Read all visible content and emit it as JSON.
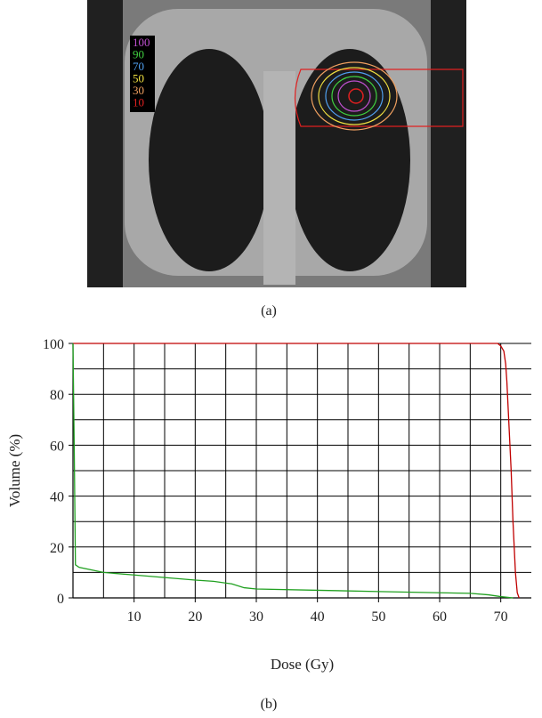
{
  "figure_a": {
    "caption": "(a)",
    "dose_legend": [
      {
        "label": "100",
        "color": "#c050d0"
      },
      {
        "label": "90",
        "color": "#40d040"
      },
      {
        "label": "70",
        "color": "#50a0f0"
      },
      {
        "label": "50",
        "color": "#f0e040"
      },
      {
        "label": "30",
        "color": "#f0a060"
      },
      {
        "label": "10",
        "color": "#e02020"
      }
    ]
  },
  "chart_data": {
    "type": "line",
    "xlabel": "Dose (Gy)",
    "ylabel": "Volume (%)",
    "xlim": [
      0,
      75
    ],
    "ylim": [
      0,
      100
    ],
    "xticks": [
      10,
      20,
      30,
      40,
      50,
      60,
      70
    ],
    "yticks": [
      0,
      20,
      40,
      60,
      80,
      100
    ],
    "x_gridlines": [
      5,
      10,
      15,
      20,
      25,
      30,
      35,
      40,
      45,
      50,
      55,
      60,
      65,
      70
    ],
    "y_gridlines": [
      10,
      20,
      30,
      40,
      50,
      60,
      70,
      80,
      90,
      100
    ],
    "grid": true,
    "series": [
      {
        "color": "#c00000",
        "x": [
          0,
          69.5,
          70,
          70.5,
          70.8,
          71,
          71.3,
          71.7,
          72,
          72.4,
          72.7,
          73
        ],
        "values": [
          100,
          100,
          99,
          97,
          92,
          85,
          70,
          50,
          30,
          10,
          2,
          0
        ]
      },
      {
        "color": "#20a020",
        "x": [
          0,
          0.2,
          0.4,
          1,
          3,
          5,
          10,
          15,
          20,
          23,
          26,
          28,
          30,
          40,
          50,
          60,
          65,
          68,
          70,
          72
        ],
        "values": [
          100,
          60,
          13,
          12,
          11,
          10,
          9,
          8,
          7,
          6.5,
          5.5,
          4,
          3.5,
          3,
          2.5,
          2,
          1.8,
          1.2,
          0.5,
          0
        ]
      }
    ]
  },
  "figure_b": {
    "caption": "(b)"
  }
}
